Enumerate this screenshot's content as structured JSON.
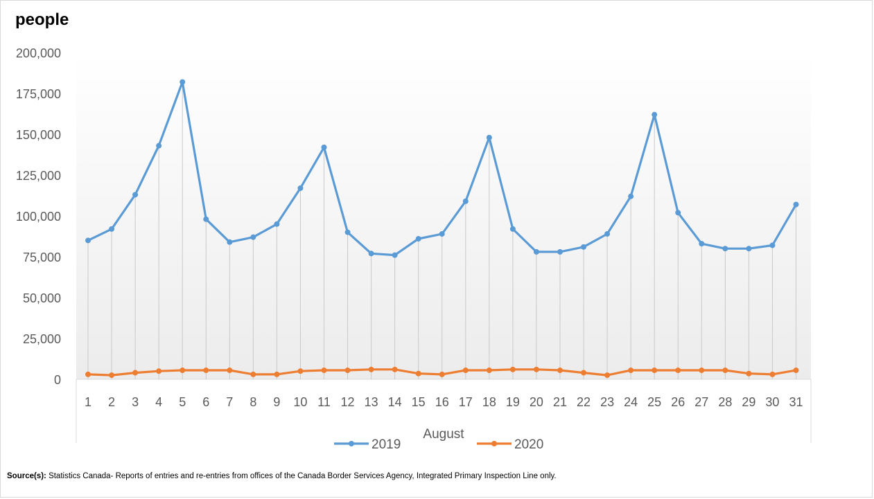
{
  "chart_data": {
    "type": "line",
    "unit_label": "people",
    "xlabel": "August",
    "ylabel": "",
    "categories": [
      "1",
      "2",
      "3",
      "4",
      "5",
      "6",
      "7",
      "8",
      "9",
      "10",
      "11",
      "12",
      "13",
      "14",
      "15",
      "16",
      "17",
      "18",
      "19",
      "20",
      "21",
      "22",
      "23",
      "24",
      "25",
      "26",
      "27",
      "28",
      "29",
      "30",
      "31"
    ],
    "ylim": [
      0,
      200000
    ],
    "y_ticks": [
      "0",
      "25,000",
      "50,000",
      "75,000",
      "100,000",
      "125,000",
      "150,000",
      "175,000",
      "200,000"
    ],
    "y_tick_values": [
      0,
      25000,
      50000,
      75000,
      100000,
      125000,
      150000,
      175000,
      200000
    ],
    "series": [
      {
        "name": "2019",
        "color": "#5B9BD5",
        "values": [
          85000,
          92000,
          113000,
          143000,
          182000,
          98000,
          84000,
          87000,
          95000,
          117000,
          142000,
          90000,
          77000,
          76000,
          86000,
          89000,
          109000,
          148000,
          92000,
          78000,
          78000,
          81000,
          89000,
          112000,
          162000,
          102000,
          83000,
          80000,
          80000,
          82000,
          107000
        ]
      },
      {
        "name": "2020",
        "color": "#ED7D31",
        "values": [
          3000,
          2500,
          4000,
          5000,
          5500,
          5500,
          5500,
          3000,
          3000,
          5000,
          5500,
          5500,
          6000,
          6000,
          3500,
          3000,
          5500,
          5500,
          6000,
          6000,
          5500,
          4000,
          2500,
          5500,
          5500,
          5500,
          5500,
          5500,
          3500,
          3000,
          5500
        ]
      }
    ],
    "legend_position": "bottom",
    "grid": "vertical drop lines"
  },
  "footer": {
    "source_label": "Source(s):",
    "source_text": " Statistics Canada- Reports of entries and re-entries from offices of the Canada Border Services Agency, Integrated Primary Inspection Line only."
  }
}
